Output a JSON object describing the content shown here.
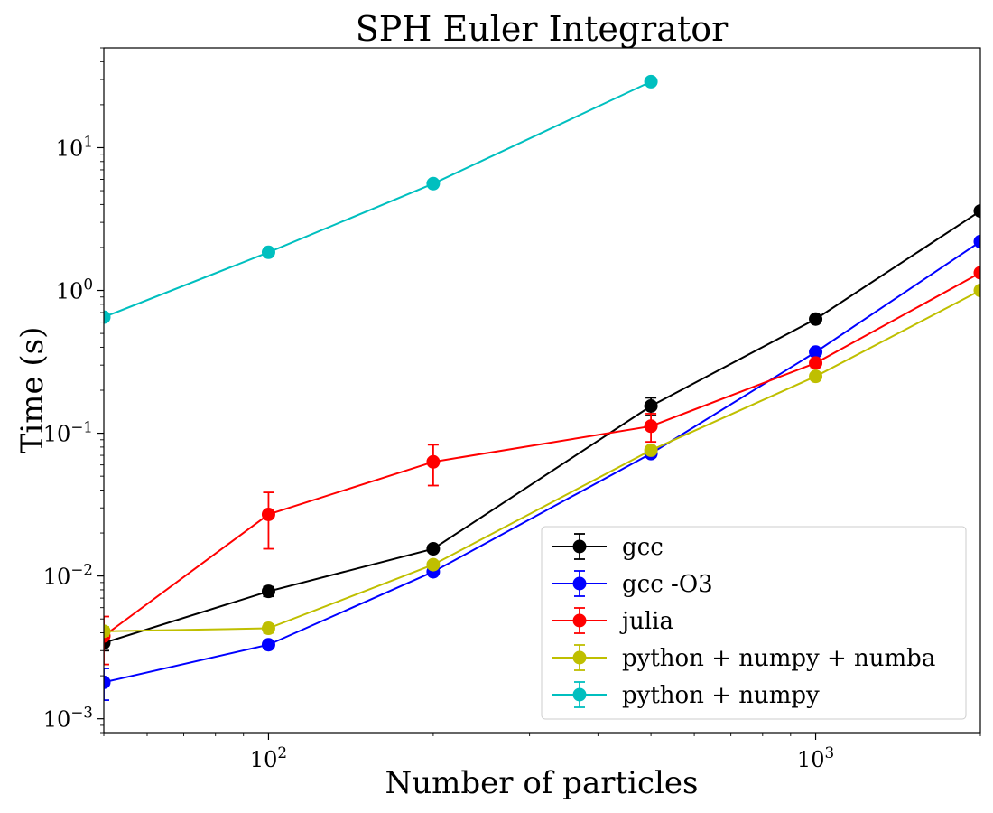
{
  "chart_data": {
    "type": "line",
    "title": "SPH Euler Integrator",
    "xlabel": "Number of particles",
    "ylabel": "Time (s)",
    "xscale": "log",
    "yscale": "log",
    "xlim": [
      50,
      2000
    ],
    "ylim": [
      0.0008,
      50
    ],
    "x_ticks": [
      {
        "value": 100,
        "base": "10",
        "exp": "2"
      },
      {
        "value": 1000,
        "base": "10",
        "exp": "3"
      }
    ],
    "y_ticks": [
      {
        "value": 0.001,
        "base": "10",
        "exp": "−3"
      },
      {
        "value": 0.01,
        "base": "10",
        "exp": "−2"
      },
      {
        "value": 0.1,
        "base": "10",
        "exp": "−1"
      },
      {
        "value": 1,
        "base": "10",
        "exp": "0"
      },
      {
        "value": 10,
        "base": "10",
        "exp": "1"
      }
    ],
    "grid": false,
    "legend_position": "lower-right",
    "marker": "circle",
    "series": [
      {
        "name": "gcc",
        "color": "#000000",
        "x": [
          50,
          100,
          200,
          500,
          1000,
          2000
        ],
        "y": [
          0.0034,
          0.0078,
          0.0155,
          0.155,
          0.63,
          3.6
        ],
        "err": [
          0.0004,
          0.0006,
          0.0008,
          0.022,
          0.02,
          0.1
        ]
      },
      {
        "name": "gcc -O3",
        "color": "#0000ff",
        "x": [
          50,
          100,
          200,
          500,
          1000,
          2000
        ],
        "y": [
          0.0018,
          0.0033,
          0.0107,
          0.072,
          0.37,
          2.2
        ],
        "err": [
          0.00045,
          0.0002,
          0.0004,
          0.004,
          0.01,
          0.05
        ]
      },
      {
        "name": "julia",
        "color": "#ff0000",
        "x": [
          50,
          100,
          200,
          500,
          1000,
          2000
        ],
        "y": [
          0.0038,
          0.027,
          0.063,
          0.112,
          0.31,
          1.33
        ],
        "err": [
          0.0014,
          0.0115,
          0.02,
          0.025,
          0.02,
          0.05
        ]
      },
      {
        "name": "python + numpy + numba",
        "color": "#bfbf00",
        "x": [
          50,
          100,
          200,
          500,
          1000,
          2000
        ],
        "y": [
          0.0041,
          0.0043,
          0.012,
          0.076,
          0.25,
          1.0
        ],
        "err": [
          0.0003,
          0.0003,
          0.0006,
          0.004,
          0.01,
          0.03
        ]
      },
      {
        "name": "python + numpy",
        "color": "#00bfbf",
        "x": [
          50,
          100,
          200,
          500
        ],
        "y": [
          0.65,
          1.85,
          5.6,
          29
        ],
        "err": [
          0.02,
          0.05,
          0.1,
          0.5
        ]
      }
    ]
  }
}
